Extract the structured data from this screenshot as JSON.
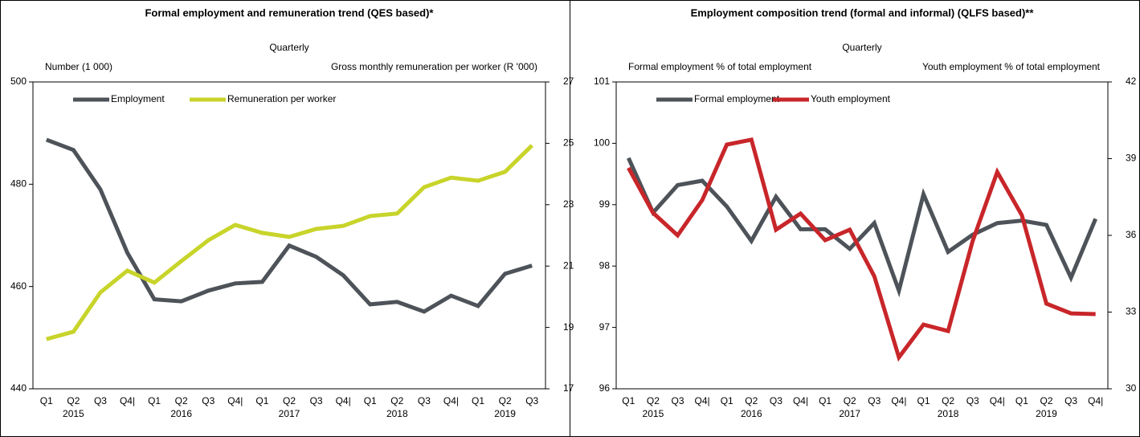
{
  "chart_data": [
    {
      "type": "line",
      "title": "Formal employment and remuneration trend (QES based)*",
      "subtitle": "Quarterly",
      "ylabel": "Number (1 000)",
      "y2label": "Gross monthly remuneration per worker (R '000)",
      "categories": [
        "Q1",
        "Q2",
        "Q3",
        "Q4|",
        "Q1",
        "Q2",
        "Q3",
        "Q4|",
        "Q1",
        "Q2",
        "Q3",
        "Q4|",
        "Q1",
        "Q2",
        "Q3",
        "Q4|",
        "Q1",
        "Q2",
        "Q3"
      ],
      "category_groups": [
        "2015",
        "2016",
        "2017",
        "2018",
        "2019"
      ],
      "ylim": [
        440,
        500
      ],
      "yticks": [
        440,
        460,
        480,
        500
      ],
      "y2lim": [
        17,
        27
      ],
      "y2ticks": [
        17,
        19,
        21,
        23,
        25,
        27
      ],
      "legend": "upper left",
      "series": [
        {
          "name": "Employment",
          "color": "#4d5359",
          "values": [
            488.7,
            486.7,
            479,
            466.6,
            457.5,
            457.1,
            459.2,
            460.6,
            460.9,
            468,
            465.8,
            462.2,
            456.5,
            457,
            455.1,
            458.2,
            456.2,
            462.5,
            464.1
          ]
        },
        {
          "name": "Remuneration per worker",
          "color": "#c8d42a",
          "axis": "y2",
          "values": [
            18.62,
            18.86,
            20.14,
            20.85,
            20.46,
            21.16,
            21.84,
            22.34,
            22.08,
            21.95,
            22.21,
            22.31,
            22.63,
            22.71,
            23.57,
            23.88,
            23.78,
            24.07,
            24.93
          ]
        }
      ]
    },
    {
      "type": "line",
      "title": "Employment composition trend (formal and informal) (QLFS based)**",
      "subtitle": "Quarterly",
      "ylabel": "Formal employment % of total employment",
      "y2label": "Youth employment % of total employment",
      "categories": [
        "Q1",
        "Q2",
        "Q3",
        "Q4|",
        "Q1",
        "Q2",
        "Q3",
        "Q4|",
        "Q1",
        "Q2",
        "Q3",
        "Q4|",
        "Q1",
        "Q2",
        "Q3",
        "Q4|",
        "Q1",
        "Q2",
        "Q3",
        "Q4|"
      ],
      "category_groups": [
        "2015",
        "2016",
        "2017",
        "2018",
        "2019"
      ],
      "ylim": [
        96,
        101
      ],
      "yticks": [
        96,
        97,
        98,
        99,
        100,
        101
      ],
      "y2lim": [
        30,
        42
      ],
      "y2ticks": [
        30,
        33,
        36,
        39,
        42
      ],
      "legend": "upper left",
      "series": [
        {
          "name": "Formal employment",
          "color": "#4d5359",
          "values": [
            99.76,
            98.87,
            99.32,
            99.39,
            98.97,
            98.41,
            99.13,
            98.6,
            98.6,
            98.28,
            98.7,
            97.6,
            99.17,
            98.23,
            98.51,
            98.7,
            98.74,
            98.67,
            97.81,
            98.77
          ]
        },
        {
          "name": "Youth employment",
          "color": "#c8262a",
          "axis": "y2",
          "values": [
            38.64,
            36.88,
            36.0,
            37.38,
            39.55,
            39.74,
            36.22,
            36.85,
            35.81,
            36.22,
            34.4,
            31.23,
            32.51,
            32.26,
            35.78,
            38.48,
            36.79,
            33.33,
            32.95,
            32.92
          ]
        }
      ]
    }
  ]
}
